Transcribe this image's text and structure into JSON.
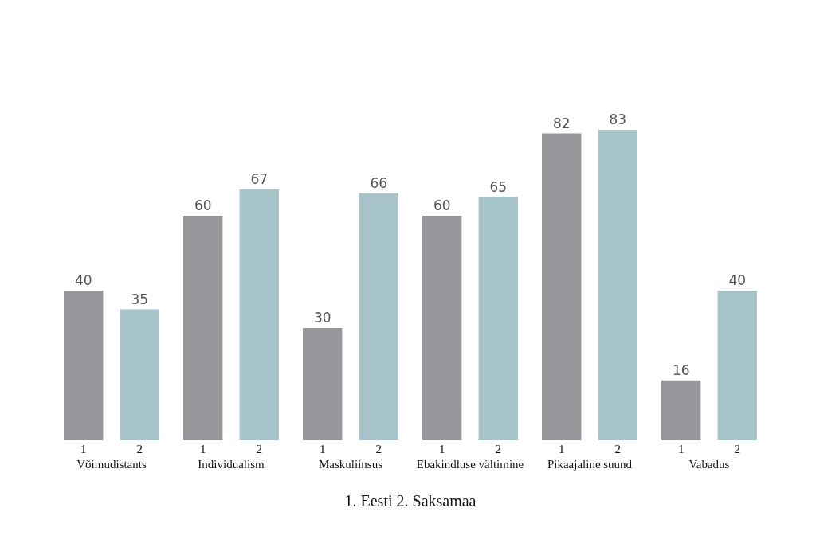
{
  "chart_data": {
    "type": "bar",
    "categories": [
      "Võimudistants",
      "Individualism",
      "Maskuliinsus",
      "Ebakindluse vältimine",
      "Pikaajaline suund",
      "Vabadus"
    ],
    "series": [
      {
        "name": "1",
        "color": "#98969a",
        "values": [
          40,
          60,
          30,
          60,
          82,
          16
        ]
      },
      {
        "name": "2",
        "color": "#a8c4cb",
        "values": [
          35,
          67,
          66,
          65,
          83,
          40
        ]
      }
    ],
    "data_labels": true,
    "grid": false,
    "legend": false,
    "annotations": [
      "1. Eesti 2. Saksamaa"
    ]
  }
}
